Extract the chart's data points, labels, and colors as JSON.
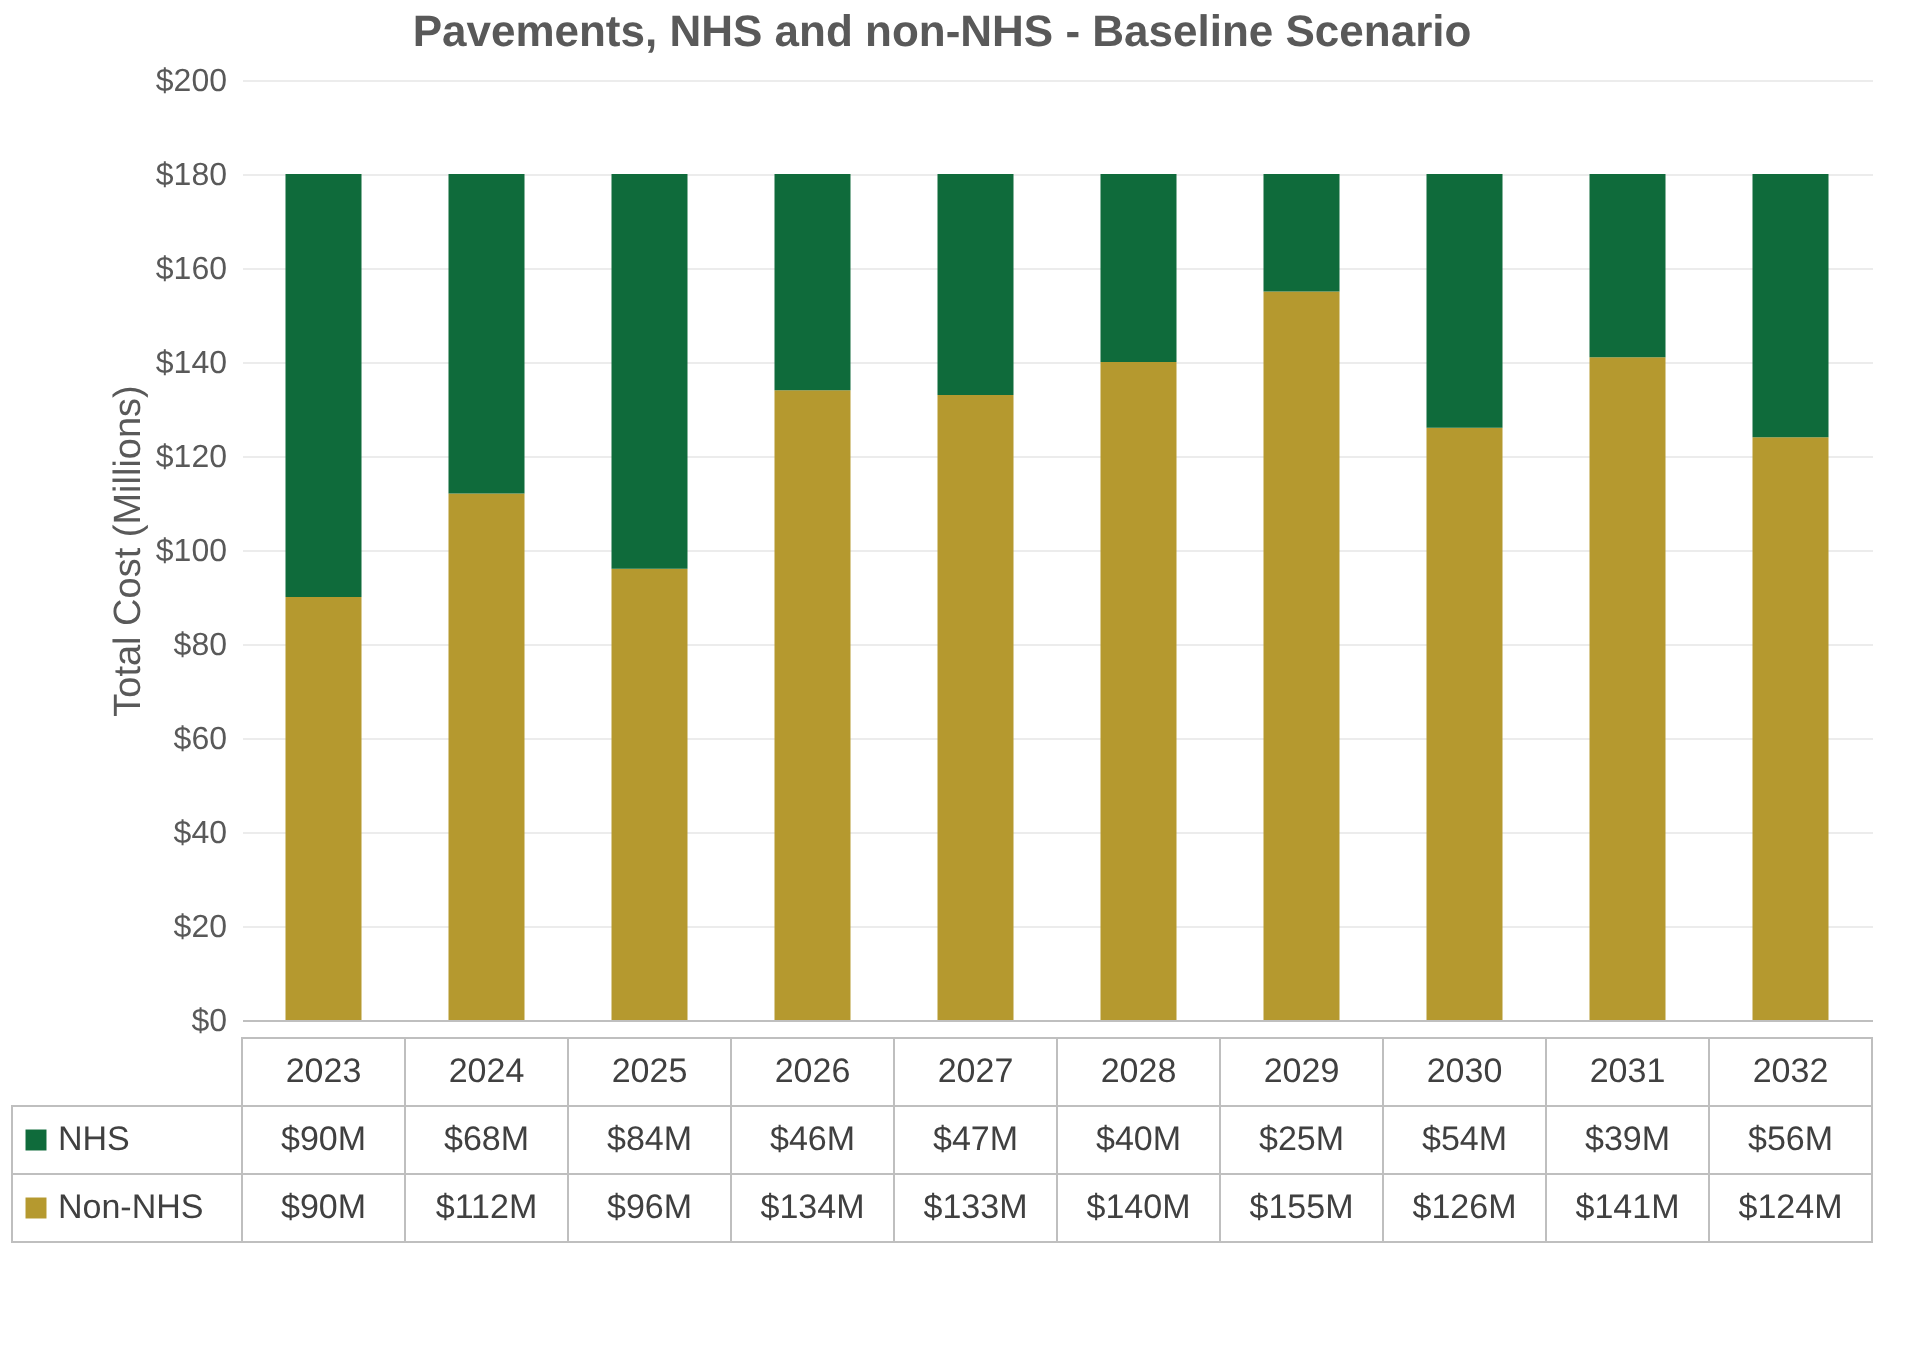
{
  "chart_data": {
    "type": "bar",
    "title": "Pavements, NHS and non-NHS - Baseline Scenario",
    "ylabel": "Total Cost (Millions)",
    "categories": [
      "2023",
      "2024",
      "2025",
      "2026",
      "2027",
      "2028",
      "2029",
      "2030",
      "2031",
      "2032"
    ],
    "stacked": true,
    "series": [
      {
        "name": "Non-NHS",
        "color": "#b5992f",
        "values": [
          90,
          112,
          96,
          134,
          133,
          140,
          155,
          126,
          141,
          124
        ],
        "value_labels": [
          "$90M",
          "$112M",
          "$96M",
          "$134M",
          "$133M",
          "$140M",
          "$155M",
          "$126M",
          "$141M",
          "$124M"
        ]
      },
      {
        "name": "NHS",
        "color": "#0f6b3b",
        "values": [
          90,
          68,
          84,
          46,
          47,
          40,
          25,
          54,
          39,
          56
        ],
        "value_labels": [
          "$90M",
          "$68M",
          "$84M",
          "$46M",
          "$47M",
          "$40M",
          "$25M",
          "$54M",
          "$39M",
          "$56M"
        ]
      }
    ],
    "ylim": [
      0,
      200
    ],
    "yticks": [
      {
        "value": 0,
        "label": "$0"
      },
      {
        "value": 20,
        "label": "$20"
      },
      {
        "value": 40,
        "label": "$40"
      },
      {
        "value": 60,
        "label": "$60"
      },
      {
        "value": 80,
        "label": "$80"
      },
      {
        "value": 100,
        "label": "$100"
      },
      {
        "value": 120,
        "label": "$120"
      },
      {
        "value": 140,
        "label": "$140"
      },
      {
        "value": 160,
        "label": "$160"
      },
      {
        "value": 180,
        "label": "$180"
      },
      {
        "value": 200,
        "label": "$200"
      }
    ],
    "grid": "y",
    "legend": "bottom left"
  }
}
